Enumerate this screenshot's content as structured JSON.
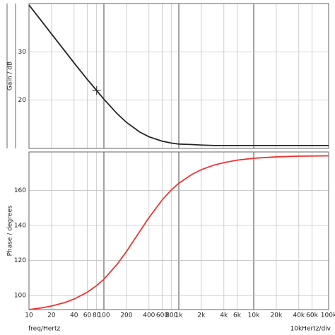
{
  "chart_data": [
    {
      "type": "line",
      "ylabel": "Gain / dB",
      "color": "#222222",
      "x": [
        10,
        15,
        20,
        30,
        40,
        60,
        80,
        100,
        150,
        200,
        300,
        400,
        600,
        800,
        1000,
        1500,
        2000,
        3000,
        4000,
        6000,
        10000,
        20000,
        40000,
        100000
      ],
      "values": [
        39.7,
        36.2,
        33.7,
        30.2,
        27.7,
        24.3,
        22.0,
        20.2,
        17.2,
        15.4,
        13.4,
        12.4,
        11.5,
        11.1,
        10.9,
        10.8,
        10.7,
        10.6,
        10.6,
        10.6,
        10.6,
        10.6,
        10.6,
        10.6
      ],
      "cursor": {
        "x": 80,
        "y": 22.0
      },
      "xlim": [
        10,
        100000
      ],
      "ylim": [
        10,
        40
      ],
      "yticks": [
        20,
        30
      ],
      "log_x": true,
      "grid": true
    },
    {
      "type": "line",
      "ylabel": "Phase / degrees",
      "color": "#ee3333",
      "x": [
        10,
        15,
        20,
        30,
        40,
        60,
        80,
        100,
        150,
        200,
        300,
        400,
        600,
        800,
        1000,
        1500,
        2000,
        3000,
        4000,
        6000,
        10000,
        20000,
        40000,
        100000
      ],
      "values": [
        92.0,
        93.0,
        94.0,
        96.0,
        98.0,
        101.9,
        105.7,
        109.3,
        117.8,
        125.1,
        136.5,
        144.5,
        154.6,
        160.4,
        164.1,
        169.2,
        171.9,
        174.6,
        175.9,
        177.3,
        178.4,
        179.2,
        179.6,
        179.8
      ],
      "xlim": [
        10,
        100000
      ],
      "ylim": [
        92,
        182
      ],
      "yticks": [
        100,
        120,
        140,
        160
      ],
      "xticks": [
        10,
        20,
        40,
        60,
        80,
        100,
        200,
        400,
        600,
        800,
        {
          "value": 1000,
          "label": "1k"
        },
        {
          "value": 2000,
          "label": "2k"
        },
        {
          "value": 4000,
          "label": "4k"
        },
        {
          "value": 6000,
          "label": "6k"
        },
        {
          "value": 10000,
          "label": "10k"
        },
        {
          "value": 20000,
          "label": "20k"
        },
        {
          "value": 40000,
          "label": "40k"
        },
        {
          "value": 60000,
          "label": "60k"
        },
        {
          "value": 100000,
          "label": "100k"
        }
      ],
      "log_x": true,
      "grid": true,
      "xlabel": "freq/Hertz",
      "annotation": "10kHertz/div"
    }
  ]
}
